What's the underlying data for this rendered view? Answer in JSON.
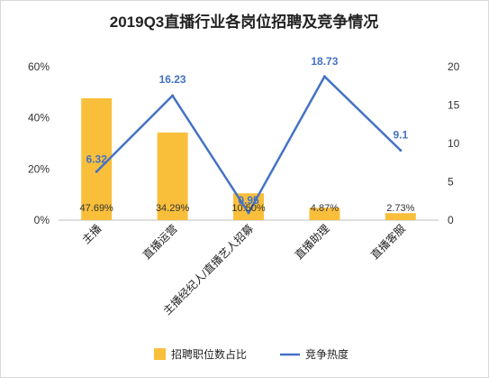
{
  "chart_data": {
    "type": "bar+line",
    "title": "2019Q3直播行业各岗位招聘及竞争情况",
    "categories": [
      "主播",
      "直播运营",
      "主播经纪人/直播艺人招募",
      "直播助理",
      "直播客服"
    ],
    "series": [
      {
        "name": "招聘职位数占比",
        "type": "bar",
        "axis": "left",
        "color": "#f9bf3b",
        "values": [
          47.69,
          34.29,
          10.5,
          4.87,
          2.73
        ],
        "labels": [
          "47.69%",
          "34.29%",
          "10.50%",
          "4.87%",
          "2.73%"
        ]
      },
      {
        "name": "竞争热度",
        "type": "line",
        "axis": "right",
        "color": "#4472c4",
        "values": [
          6.32,
          16.23,
          0.95,
          18.73,
          9.1
        ],
        "labels": [
          "6.32",
          "16.23",
          "0.95",
          "18.73",
          "9.1"
        ]
      }
    ],
    "y_left": {
      "min": 0,
      "max": 60,
      "ticks": [
        0,
        20,
        40,
        60
      ],
      "tick_labels": [
        "0%",
        "20%",
        "40%",
        "60%"
      ]
    },
    "y_right": {
      "min": 0,
      "max": 20,
      "ticks": [
        0,
        5,
        10,
        15,
        20
      ],
      "tick_labels": [
        "0",
        "5",
        "10",
        "15",
        "20"
      ]
    },
    "grid": false,
    "legend": "bottom"
  }
}
